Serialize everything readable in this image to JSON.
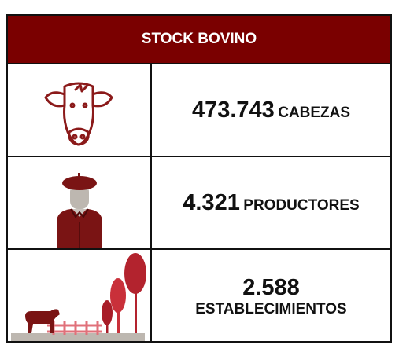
{
  "header": {
    "title": "STOCK BOVINO"
  },
  "rows": [
    {
      "number": "473.743",
      "label": "CABEZAS"
    },
    {
      "number": "4.321",
      "label": "PRODUCTORES"
    },
    {
      "number": "2.588",
      "label": "ESTABLECIMIENTOS"
    }
  ]
}
